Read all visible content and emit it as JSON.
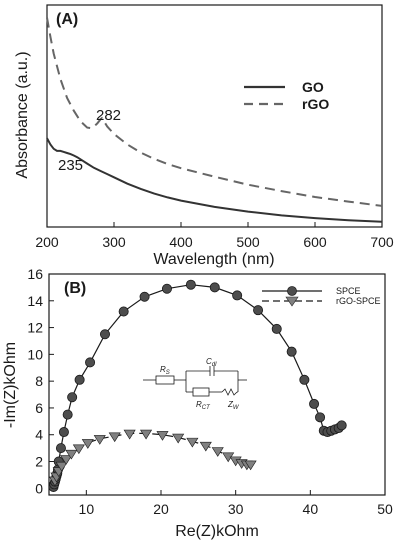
{
  "chart_data": [
    {
      "type": "line",
      "panel_label": "(A)",
      "xlabel": "Wavelength (nm)",
      "ylabel": "Absorbance (a.u.)",
      "xlim": [
        200,
        700
      ],
      "x_ticks": [
        200,
        300,
        400,
        500,
        600,
        700
      ],
      "y_ticks_shown": false,
      "legend_position": "right",
      "annotations": [
        {
          "text": "282",
          "x": 282,
          "series": "rGO"
        },
        {
          "text": "235",
          "x": 235,
          "series": "GO"
        }
      ],
      "series": [
        {
          "name": "GO",
          "style": "solid",
          "color": "#333333",
          "x": [
            200,
            205,
            210,
            215,
            220,
            225,
            230,
            235,
            240,
            245,
            250,
            260,
            270,
            280,
            290,
            300,
            320,
            340,
            360,
            380,
            400,
            450,
            500,
            550,
            600,
            650,
            700
          ],
          "y": [
            0.42,
            0.39,
            0.37,
            0.36,
            0.36,
            0.355,
            0.35,
            0.345,
            0.338,
            0.33,
            0.32,
            0.3,
            0.28,
            0.265,
            0.25,
            0.235,
            0.205,
            0.18,
            0.158,
            0.14,
            0.125,
            0.095,
            0.073,
            0.055,
            0.042,
            0.032,
            0.025
          ]
        },
        {
          "name": "rGO",
          "style": "dashed",
          "color": "#666666",
          "x": [
            200,
            205,
            210,
            220,
            230,
            240,
            250,
            260,
            265,
            270,
            275,
            280,
            282,
            285,
            290,
            300,
            320,
            340,
            360,
            380,
            400,
            450,
            500,
            550,
            600,
            650,
            700
          ],
          "y": [
            0.99,
            0.9,
            0.82,
            0.7,
            0.61,
            0.55,
            0.5,
            0.47,
            0.468,
            0.475,
            0.49,
            0.51,
            0.515,
            0.5,
            0.475,
            0.44,
            0.39,
            0.352,
            0.322,
            0.298,
            0.278,
            0.238,
            0.2,
            0.17,
            0.142,
            0.12,
            0.1
          ]
        }
      ]
    },
    {
      "type": "scatter",
      "panel_label": "(B)",
      "xlabel": "Re(Z)kOhm",
      "ylabel": "-Im(Z)kOhm",
      "xlim": [
        5,
        50
      ],
      "ylim": [
        -0.5,
        16
      ],
      "x_ticks": [
        10,
        20,
        30,
        40,
        50
      ],
      "y_ticks": [
        0,
        2,
        4,
        6,
        8,
        10,
        12,
        14,
        16
      ],
      "legend_position": "top-right",
      "inset": {
        "type": "equivalent-circuit",
        "labels": [
          "RS",
          "Cdl",
          "RCT",
          "ZW"
        ]
      },
      "series": [
        {
          "name": "SPCE",
          "marker": "circle",
          "line": "solid",
          "color": "#4d4d4d",
          "x": [
            5.6,
            5.7,
            5.8,
            5.9,
            6.0,
            6.1,
            6.2,
            6.3,
            6.6,
            7.0,
            7.5,
            8.1,
            9.1,
            10.5,
            12.5,
            15.0,
            17.8,
            20.8,
            24.0,
            27.2,
            30.2,
            33.0,
            35.5,
            37.5,
            39.2,
            40.5,
            41.3,
            41.8,
            42.3,
            42.8,
            43.3,
            43.8,
            44.2
          ],
          "y": [
            0.1,
            0.3,
            0.5,
            0.7,
            0.9,
            1.1,
            1.4,
            2.0,
            3.0,
            4.2,
            5.5,
            6.8,
            8.1,
            9.4,
            11.5,
            13.2,
            14.3,
            14.9,
            15.2,
            15.0,
            14.4,
            13.3,
            11.9,
            10.2,
            8.1,
            6.3,
            5.3,
            4.3,
            4.2,
            4.3,
            4.4,
            4.5,
            4.7
          ]
        },
        {
          "name": "rGO-SPCE",
          "marker": "triangle-down",
          "line": "dashed",
          "color": "#808080",
          "x": [
            5.8,
            6.0,
            6.3,
            6.7,
            7.3,
            8.0,
            9.0,
            10.2,
            11.8,
            13.8,
            15.8,
            18.0,
            20.2,
            22.3,
            24.2,
            26.0,
            27.6,
            29.0,
            30.0,
            30.8,
            31.5,
            32.0
          ],
          "y": [
            0.6,
            0.9,
            1.3,
            1.7,
            2.2,
            2.6,
            3.0,
            3.4,
            3.7,
            3.9,
            4.1,
            4.1,
            4.0,
            3.8,
            3.5,
            3.2,
            2.8,
            2.4,
            2.1,
            1.9,
            1.8,
            1.8
          ]
        }
      ]
    }
  ]
}
